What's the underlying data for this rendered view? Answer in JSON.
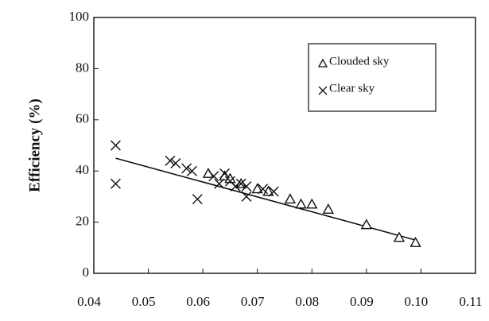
{
  "chart_data": {
    "type": "scatter",
    "ylabel": "Efficiency (%)",
    "xlim": [
      0.04,
      0.11
    ],
    "ylim": [
      0,
      100
    ],
    "xticks": [
      0.04,
      0.05,
      0.06,
      0.07,
      0.08,
      0.09,
      {
        "value": 0.1,
        "label": "0.10"
      },
      0.11
    ],
    "yticks": [
      0,
      20,
      40,
      60,
      80,
      100
    ],
    "legend": "upper right",
    "series": [
      {
        "name": "Clouded sky",
        "marker": "triangle",
        "color": "#111111",
        "x": [
          0.061,
          0.064,
          0.065,
          0.067,
          0.07,
          0.072,
          0.076,
          0.078,
          0.08,
          0.083,
          0.09,
          0.096,
          0.099
        ],
        "values": [
          39,
          38,
          37,
          35,
          33,
          32,
          29,
          27,
          27,
          25,
          19,
          14,
          12
        ]
      },
      {
        "name": "Clear sky",
        "marker": "x",
        "color": "#111111",
        "x": [
          0.044,
          0.044,
          0.054,
          0.055,
          0.057,
          0.058,
          0.059,
          0.062,
          0.063,
          0.064,
          0.065,
          0.066,
          0.067,
          0.068,
          0.068,
          0.071,
          0.073
        ],
        "values": [
          50,
          35,
          44,
          43,
          41,
          40,
          29,
          38,
          35,
          39,
          36,
          34,
          35,
          30,
          34,
          33,
          32
        ]
      }
    ],
    "trendline": {
      "x": [
        0.044,
        0.099
      ],
      "values": [
        45,
        13
      ],
      "color": "#111111"
    }
  }
}
